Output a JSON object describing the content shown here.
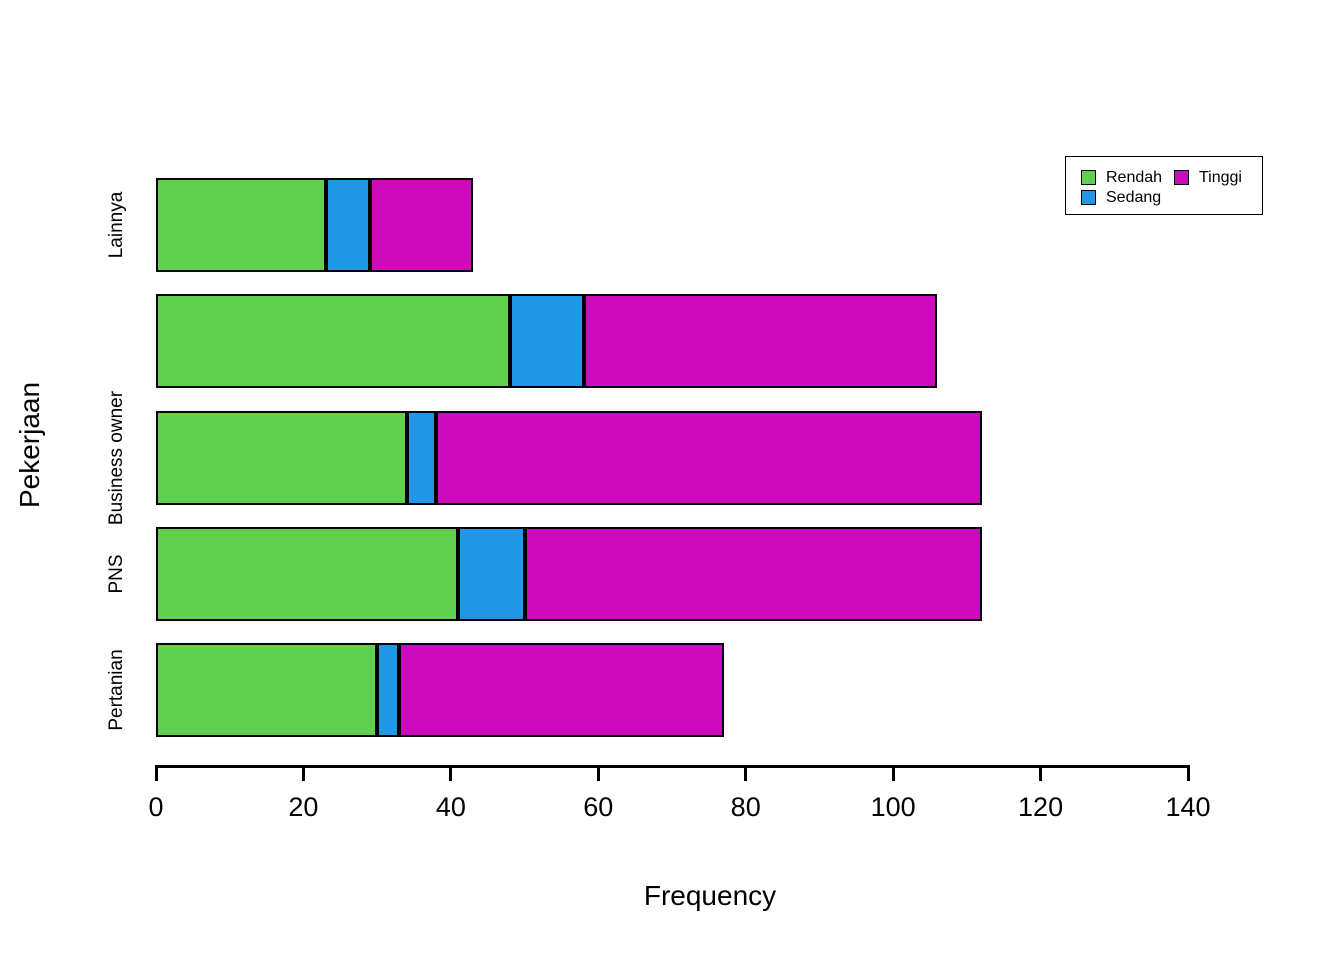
{
  "figure": {
    "background": "#ffffff"
  },
  "chart_data": {
    "type": "bar",
    "orientation": "horizontal",
    "stacked": true,
    "title": "",
    "xlabel": "Frequency",
    "ylabel": "Pekerjaan",
    "xlim": [
      0,
      140
    ],
    "xticks": [
      0,
      20,
      40,
      60,
      80,
      100,
      120,
      140
    ],
    "grid": false,
    "category_order": "top_to_bottom",
    "categories": [
      "Lainnya",
      "",
      "Business owner",
      "PNS",
      "Pertanian"
    ],
    "series": [
      {
        "name": "Rendah",
        "color": "#61D04F",
        "values": [
          23,
          48,
          34,
          41,
          30
        ]
      },
      {
        "name": "Sedang",
        "color": "#2297E6",
        "values": [
          6,
          10,
          4,
          9,
          3
        ]
      },
      {
        "name": "Tinggi",
        "color": "#CD0BBC",
        "values": [
          14,
          48,
          74,
          62,
          44
        ]
      }
    ],
    "totals": [
      43,
      106,
      112,
      112,
      77
    ],
    "bar_border_color": "#000000",
    "legend": {
      "position": "top-right",
      "columns": 2,
      "column1": [
        "Rendah",
        "Sedang"
      ],
      "column2": [
        "Tinggi"
      ]
    }
  }
}
